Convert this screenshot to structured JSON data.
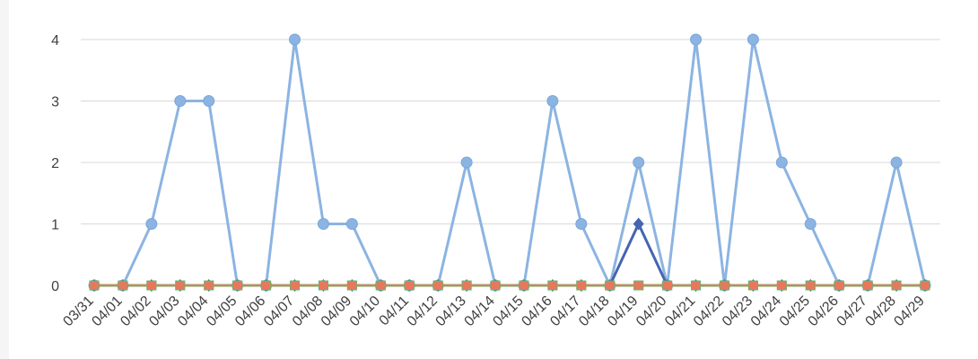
{
  "chart_data": {
    "type": "line",
    "title": "",
    "xlabel": "",
    "ylabel": "",
    "ylim": [
      0,
      4
    ],
    "yticks": [
      0,
      1,
      2,
      3,
      4
    ],
    "grid": "horizontal",
    "legend": "none",
    "categories": [
      "03/31",
      "04/01",
      "04/02",
      "04/03",
      "04/04",
      "04/05",
      "04/06",
      "04/07",
      "04/08",
      "04/09",
      "04/10",
      "04/11",
      "04/12",
      "04/13",
      "04/14",
      "04/15",
      "04/16",
      "04/17",
      "04/18",
      "04/19",
      "04/20",
      "04/21",
      "04/22",
      "04/23",
      "04/24",
      "04/25",
      "04/26",
      "04/27",
      "04/28",
      "04/29"
    ],
    "series": [
      {
        "color": "#8cb4e2",
        "marker": "circle",
        "values": [
          0,
          0,
          1,
          3,
          3,
          0,
          0,
          4,
          1,
          1,
          0,
          0,
          0,
          2,
          0,
          0,
          3,
          1,
          0,
          2,
          0,
          4,
          0,
          4,
          2,
          1,
          0,
          0,
          2,
          0
        ]
      },
      {
        "color": "#4565b0",
        "marker": "diamond",
        "values": [
          0,
          0,
          0,
          0,
          0,
          0,
          0,
          0,
          0,
          0,
          0,
          0,
          0,
          0,
          0,
          0,
          0,
          0,
          0,
          1,
          0,
          0,
          0,
          0,
          0,
          0,
          0,
          0,
          0,
          0
        ]
      },
      {
        "color": "#5fb870",
        "marker": "square",
        "values": [
          0,
          0,
          0,
          0,
          0,
          0,
          0,
          0,
          0,
          0,
          0,
          0,
          0,
          0,
          0,
          0,
          0,
          0,
          0,
          0,
          0,
          0,
          0,
          0,
          0,
          0,
          0,
          0,
          0,
          0
        ]
      },
      {
        "color": "#e8785a",
        "marker": "square",
        "values": [
          0,
          0,
          0,
          0,
          0,
          0,
          0,
          0,
          0,
          0,
          0,
          0,
          0,
          0,
          0,
          0,
          0,
          0,
          0,
          0,
          0,
          0,
          0,
          0,
          0,
          0,
          0,
          0,
          0,
          0
        ]
      }
    ]
  }
}
